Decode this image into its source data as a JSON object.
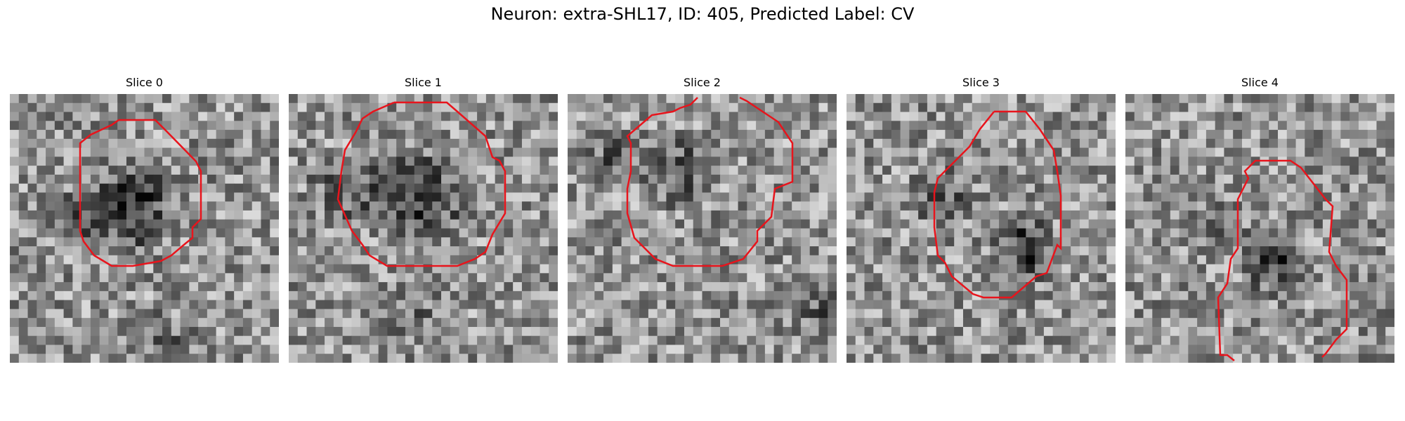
{
  "figure": {
    "title": "Neuron: extra-SHL17, ID: 405, Predicted Label: CV"
  },
  "panels": [
    {
      "title": "Slice 0"
    },
    {
      "title": "Slice 1"
    },
    {
      "title": "Slice 2"
    },
    {
      "title": "Slice 3"
    },
    {
      "title": "Slice 4"
    }
  ],
  "colors": {
    "contour": "#e8141c",
    "background": "#ffffff"
  }
}
